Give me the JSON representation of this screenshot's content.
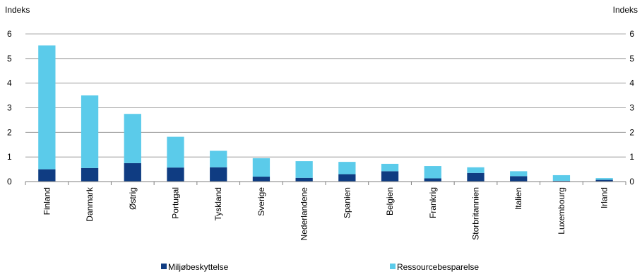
{
  "chart_data": {
    "type": "bar",
    "stacked": true,
    "ylabel_left": "Indeks",
    "ylabel_right": "Indeks",
    "ylim": [
      0,
      6
    ],
    "yticks": [
      "0",
      "1",
      "2",
      "3",
      "4",
      "5",
      "6"
    ],
    "grid": true,
    "legend_position": "bottom",
    "categories": [
      "Finland",
      "Danmark",
      "Østrig",
      "Portugal",
      "Tyskland",
      "Sverige",
      "Nederlandene",
      "Spanien",
      "Belgien",
      "Frankrig",
      "Storbritannien",
      "Italien",
      "Luxembourg",
      "Irland"
    ],
    "series": [
      {
        "name": "Miljøbeskyttelse",
        "color": "#0f3c82",
        "values": [
          0.5,
          0.55,
          0.75,
          0.57,
          0.58,
          0.2,
          0.15,
          0.3,
          0.42,
          0.13,
          0.35,
          0.22,
          0.03,
          0.07
        ]
      },
      {
        "name": "Ressourcebesparelse",
        "color": "#5bcbea",
        "values": [
          5.03,
          2.95,
          2.0,
          1.25,
          0.67,
          0.75,
          0.68,
          0.5,
          0.3,
          0.5,
          0.23,
          0.2,
          0.23,
          0.07
        ]
      }
    ]
  }
}
